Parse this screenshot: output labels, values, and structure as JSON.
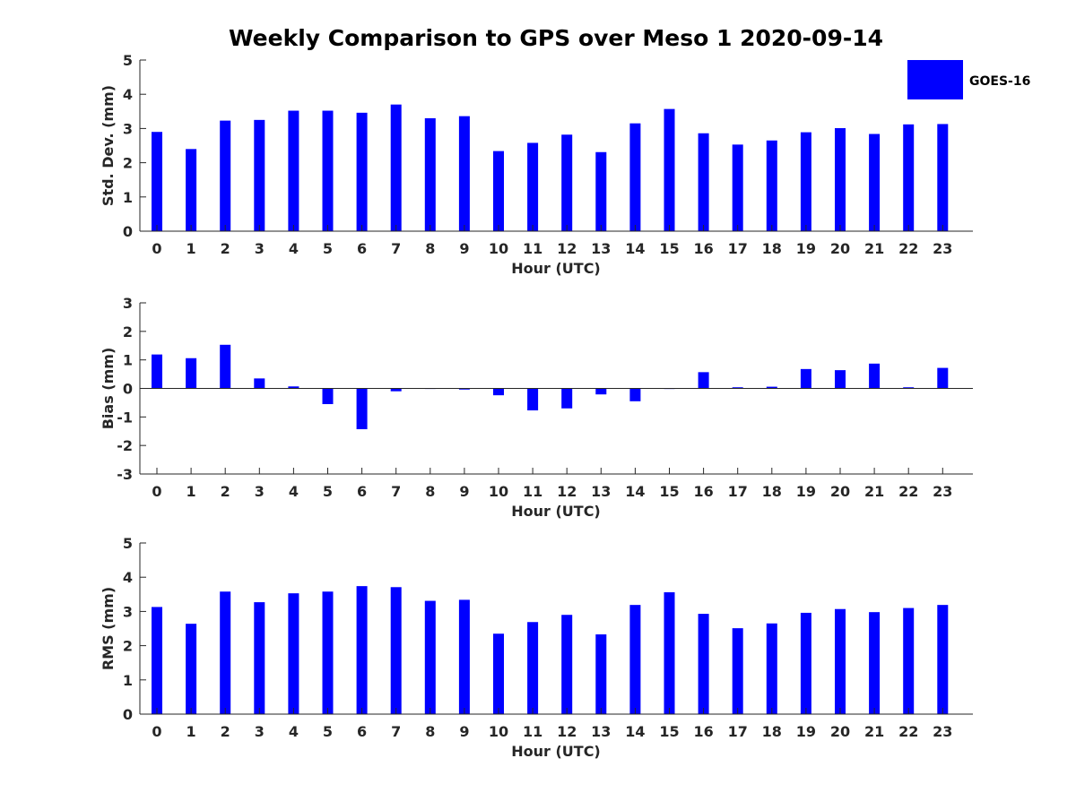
{
  "title": "Weekly Comparison to GPS over Meso 1 2020-09-14",
  "colors": {
    "bar": "#0000ff",
    "axis": "#262626",
    "text": "#262626",
    "background": "#ffffff"
  },
  "legend": {
    "label": "GOES-16",
    "placement": "top-right"
  },
  "chart_data": [
    {
      "type": "bar",
      "xlabel": "Hour (UTC)",
      "ylabel": "Std. Dev. (mm)",
      "ylim": [
        0,
        5
      ],
      "yticks": [
        "0",
        "1",
        "2",
        "3",
        "4",
        "5"
      ],
      "categories": [
        "0",
        "1",
        "2",
        "3",
        "4",
        "5",
        "6",
        "7",
        "8",
        "9",
        "10",
        "11",
        "12",
        "13",
        "14",
        "15",
        "16",
        "17",
        "18",
        "19",
        "20",
        "21",
        "22",
        "23"
      ],
      "series": [
        {
          "name": "GOES-16",
          "values": [
            2.9,
            2.4,
            3.23,
            3.25,
            3.52,
            3.52,
            3.46,
            3.7,
            3.3,
            3.36,
            2.34,
            2.58,
            2.82,
            2.31,
            3.15,
            3.57,
            2.86,
            2.53,
            2.65,
            2.89,
            3.01,
            2.84,
            3.12,
            3.13
          ]
        }
      ]
    },
    {
      "type": "bar",
      "xlabel": "Hour (UTC)",
      "ylabel": "Bias (mm)",
      "ylim": [
        -3,
        3
      ],
      "yticks": [
        "-3",
        "-2",
        "-1",
        "0",
        "1",
        "2",
        "3"
      ],
      "categories": [
        "0",
        "1",
        "2",
        "3",
        "4",
        "5",
        "6",
        "7",
        "8",
        "9",
        "10",
        "11",
        "12",
        "13",
        "14",
        "15",
        "16",
        "17",
        "18",
        "19",
        "20",
        "21",
        "22",
        "23"
      ],
      "series": [
        {
          "name": "GOES-16",
          "values": [
            1.19,
            1.06,
            1.53,
            0.35,
            0.07,
            -0.55,
            -1.43,
            -0.1,
            0.0,
            -0.04,
            -0.24,
            -0.77,
            -0.7,
            -0.21,
            -0.45,
            -0.02,
            0.57,
            0.04,
            0.06,
            0.68,
            0.64,
            0.87,
            0.04,
            0.72
          ]
        }
      ]
    },
    {
      "type": "bar",
      "xlabel": "Hour (UTC)",
      "ylabel": "RMS (mm)",
      "ylim": [
        0,
        5
      ],
      "yticks": [
        "0",
        "1",
        "2",
        "3",
        "4",
        "5"
      ],
      "categories": [
        "0",
        "1",
        "2",
        "3",
        "4",
        "5",
        "6",
        "7",
        "8",
        "9",
        "10",
        "11",
        "12",
        "13",
        "14",
        "15",
        "16",
        "17",
        "18",
        "19",
        "20",
        "21",
        "22",
        "23"
      ],
      "series": [
        {
          "name": "GOES-16",
          "values": [
            3.13,
            2.64,
            3.58,
            3.27,
            3.53,
            3.58,
            3.74,
            3.71,
            3.31,
            3.34,
            2.35,
            2.69,
            2.9,
            2.33,
            3.19,
            3.56,
            2.93,
            2.51,
            2.65,
            2.96,
            3.07,
            2.98,
            3.1,
            3.19
          ]
        }
      ]
    }
  ]
}
